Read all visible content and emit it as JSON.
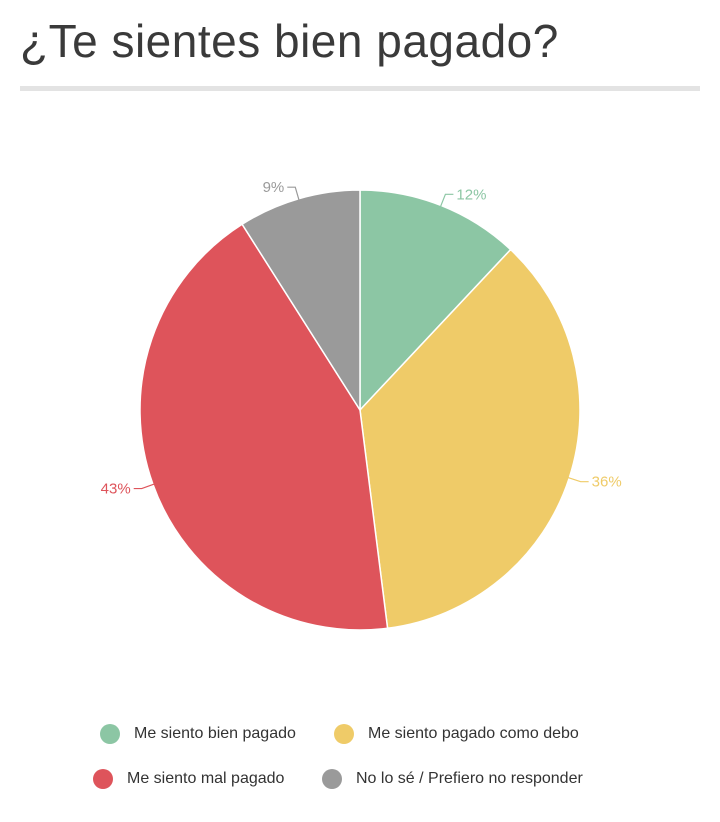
{
  "title": "¿Te sientes bien pagado?",
  "chart_data": {
    "type": "pie",
    "title": "¿Te sientes bien pagado?",
    "start_angle_deg": 0,
    "direction": "clockwise",
    "slices": [
      {
        "label": "Me siento bien pagado",
        "value": 12,
        "display": "12%",
        "color": "#8cc6a4"
      },
      {
        "label": "Me siento pagado como debo",
        "value": 36,
        "display": "36%",
        "color": "#efcb68"
      },
      {
        "label": "Me siento mal pagado",
        "value": 43,
        "display": "43%",
        "color": "#de545b"
      },
      {
        "label": "No lo sé / Prefiero no responder",
        "value": 9,
        "display": "9%",
        "color": "#9a9a9a"
      }
    ],
    "legend_position": "bottom"
  }
}
